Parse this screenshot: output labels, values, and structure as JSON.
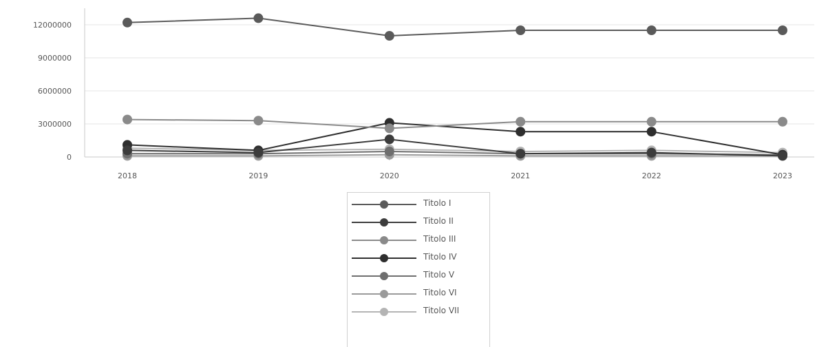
{
  "chart_data": {
    "type": "line",
    "x": [
      "2018",
      "2019",
      "2020",
      "2021",
      "2022",
      "2023"
    ],
    "ylim": [
      0,
      13500000
    ],
    "yticks": [
      0,
      3000000,
      6000000,
      9000000,
      12000000
    ],
    "ytick_labels": [
      "0",
      "3000000",
      "6000000",
      "9000000",
      "12000000"
    ],
    "grid": true,
    "legend_position": "bottom",
    "series": [
      {
        "name": "Titolo I",
        "color": "#5a5a5a",
        "values": [
          12200000,
          12600000,
          11000000,
          11500000,
          11500000,
          11500000
        ]
      },
      {
        "name": "Titolo II",
        "color": "#3c3c3c",
        "values": [
          600000,
          400000,
          1600000,
          300000,
          400000,
          100000
        ]
      },
      {
        "name": "Titolo III",
        "color": "#8a8a8a",
        "values": [
          3400000,
          3300000,
          2600000,
          3200000,
          3200000,
          3200000
        ]
      },
      {
        "name": "Titolo IV",
        "color": "#2e2e2e",
        "values": [
          1100000,
          600000,
          3100000,
          2300000,
          2300000,
          200000
        ]
      },
      {
        "name": "Titolo V",
        "color": "#6e6e6e",
        "values": [
          300000,
          300000,
          500000,
          300000,
          300000,
          200000
        ]
      },
      {
        "name": "Titolo VI",
        "color": "#9a9a9a",
        "values": [
          100000,
          100000,
          200000,
          100000,
          100000,
          100000
        ]
      },
      {
        "name": "Titolo VII",
        "color": "#b4b4b4",
        "values": [
          800000,
          600000,
          700000,
          500000,
          600000,
          400000
        ]
      }
    ]
  }
}
